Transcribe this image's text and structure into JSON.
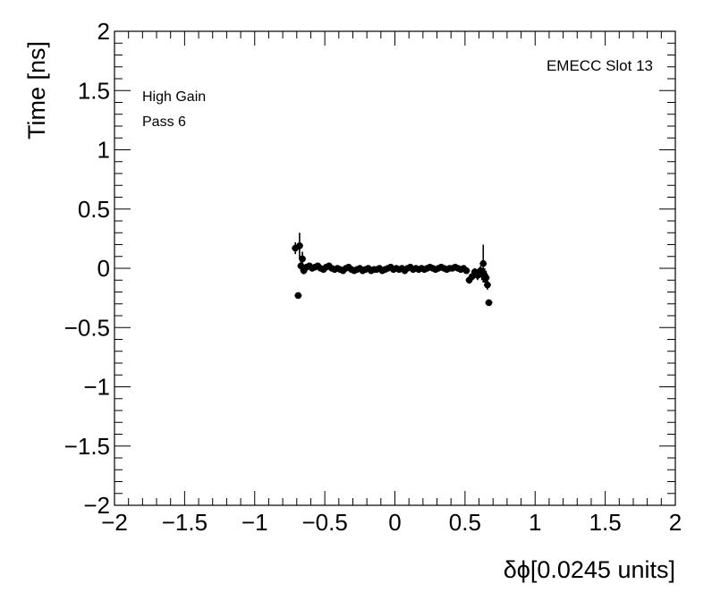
{
  "chart_data": {
    "type": "scatter",
    "title": "",
    "xlabel": "δϕ[0.0245 units]",
    "ylabel": "Time [ns]",
    "xlim": [
      -2,
      2
    ],
    "ylim": [
      -2,
      2
    ],
    "x_ticks": [
      -2,
      -1.5,
      -1,
      -0.5,
      0,
      0.5,
      1,
      1.5,
      2
    ],
    "y_ticks": [
      -2,
      -1.5,
      -1,
      -0.5,
      0,
      0.5,
      1,
      1.5,
      2
    ],
    "x_tick_labels": [
      "−2",
      "−1.5",
      "−1",
      "−0.5",
      "0",
      "0.5",
      "1",
      "1.5",
      "2"
    ],
    "y_tick_labels": [
      "−2",
      "−1.5",
      "−1",
      "−0.5",
      "0",
      "0.5",
      "1",
      "1.5",
      "2"
    ],
    "grid": false,
    "annotations": {
      "gain": "High Gain",
      "pass": "Pass 6",
      "slot": "EMECC Slot 13"
    },
    "series": [
      {
        "x": [
          -0.71,
          -0.69,
          -0.68,
          -0.67,
          -0.66,
          -0.65,
          -0.63,
          -0.61,
          -0.59,
          -0.57,
          -0.55,
          -0.53,
          -0.51,
          -0.49,
          -0.47,
          -0.45,
          -0.43,
          -0.41,
          -0.39,
          -0.37,
          -0.35,
          -0.33,
          -0.31,
          -0.29,
          -0.27,
          -0.25,
          -0.23,
          -0.21,
          -0.19,
          -0.17,
          -0.15,
          -0.13,
          -0.11,
          -0.09,
          -0.07,
          -0.05,
          -0.03,
          -0.01,
          0.01,
          0.03,
          0.05,
          0.07,
          0.09,
          0.11,
          0.13,
          0.15,
          0.17,
          0.19,
          0.21,
          0.23,
          0.25,
          0.27,
          0.29,
          0.31,
          0.33,
          0.35,
          0.37,
          0.39,
          0.41,
          0.43,
          0.45,
          0.47,
          0.49,
          0.51,
          0.53,
          0.55,
          0.57,
          0.59,
          0.61,
          0.62,
          0.63,
          0.64,
          0.65,
          0.66,
          0.67
        ],
        "y": [
          0.17,
          -0.23,
          0.19,
          0.02,
          0.08,
          -0.02,
          0.01,
          0.02,
          0.0,
          0.01,
          0.02,
          0.0,
          -0.01,
          0.01,
          0.02,
          0.0,
          -0.01,
          0.0,
          -0.01,
          -0.02,
          0.0,
          0.01,
          -0.01,
          -0.02,
          -0.01,
          0.0,
          -0.02,
          -0.01,
          0.0,
          -0.02,
          -0.01,
          -0.01,
          0.0,
          -0.02,
          -0.01,
          0.0,
          0.01,
          -0.01,
          0.0,
          -0.01,
          0.0,
          -0.02,
          0.0,
          0.01,
          -0.01,
          0.0,
          -0.01,
          0.0,
          -0.01,
          0.0,
          0.01,
          0.0,
          -0.01,
          0.0,
          0.01,
          0.0,
          -0.01,
          0.0,
          0.0,
          0.01,
          0.0,
          -0.01,
          0.0,
          -0.02,
          -0.1,
          -0.07,
          -0.03,
          -0.06,
          -0.02,
          -0.05,
          0.04,
          -0.06,
          -0.08,
          -0.14,
          -0.29
        ],
        "yerr": [
          0.05,
          0.02,
          0.11,
          0.04,
          0.06,
          0.03,
          0.02,
          0.02,
          0.02,
          0.02,
          0.02,
          0.02,
          0.02,
          0.02,
          0.02,
          0.02,
          0.02,
          0.02,
          0.02,
          0.02,
          0.02,
          0.02,
          0.02,
          0.02,
          0.02,
          0.02,
          0.02,
          0.02,
          0.02,
          0.02,
          0.02,
          0.02,
          0.02,
          0.02,
          0.02,
          0.02,
          0.02,
          0.02,
          0.02,
          0.02,
          0.02,
          0.02,
          0.02,
          0.02,
          0.02,
          0.02,
          0.02,
          0.02,
          0.02,
          0.02,
          0.02,
          0.02,
          0.02,
          0.02,
          0.02,
          0.02,
          0.02,
          0.02,
          0.02,
          0.02,
          0.02,
          0.02,
          0.02,
          0.02,
          0.03,
          0.03,
          0.03,
          0.04,
          0.04,
          0.05,
          0.16,
          0.06,
          0.06,
          0.04,
          0.02
        ]
      }
    ]
  }
}
